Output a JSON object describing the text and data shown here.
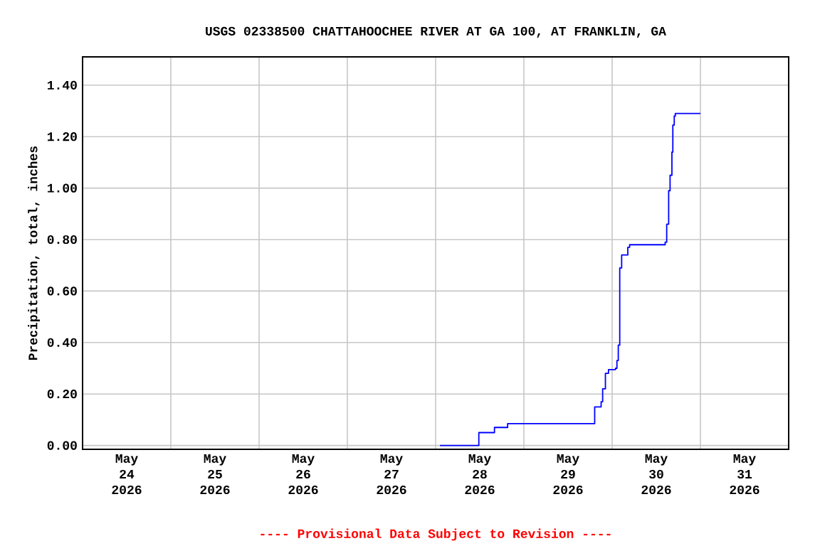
{
  "chart_data": {
    "type": "step",
    "title": "USGS 02338500 CHATTAHOOCHEE RIVER AT GA 100, AT FRANKLIN, GA",
    "ylabel": "Precipitation, total, inches",
    "annotations": [
      "---- Provisional Data Subject to Revision ----"
    ],
    "x": [
      "2026-05-28T01:10",
      "2026-05-28T11:45",
      "2026-05-28T16:00",
      "2026-05-28T19:35",
      "2026-05-29T19:15",
      "2026-05-29T21:00",
      "2026-05-29T21:25",
      "2026-05-29T22:10",
      "2026-05-29T23:00",
      "2026-05-30T00:55",
      "2026-05-30T01:18",
      "2026-05-30T01:40",
      "2026-05-30T02:04",
      "2026-05-30T02:35",
      "2026-05-30T04:15",
      "2026-05-30T04:45",
      "2026-05-30T14:25",
      "2026-05-30T14:50",
      "2026-05-30T15:22",
      "2026-05-30T15:45",
      "2026-05-30T16:15",
      "2026-05-30T16:30",
      "2026-05-30T16:53",
      "2026-05-30T17:10",
      "2026-05-31T00:00"
    ],
    "series": [
      {
        "color": "#0000ff",
        "values": [
          0,
          0.05,
          0.07,
          0.085,
          0.15,
          0.17,
          0.22,
          0.28,
          0.295,
          0.3,
          0.33,
          0.39,
          0.69,
          0.74,
          0.77,
          0.78,
          0.79,
          0.86,
          0.99,
          1.05,
          1.14,
          1.245,
          1.28,
          1.29,
          1.29
        ]
      }
    ],
    "xlim": [
      "2026-05-24T00:00",
      "2026-06-01T00:00"
    ],
    "xticks": [
      {
        "value": "2026-05-24T12:00",
        "label": "May 24 2026"
      },
      {
        "value": "2026-05-25T12:00",
        "label": "May 25 2026"
      },
      {
        "value": "2026-05-26T12:00",
        "label": "May 26 2026"
      },
      {
        "value": "2026-05-27T12:00",
        "label": "May 27 2026"
      },
      {
        "value": "2026-05-28T12:00",
        "label": "May 28 2026"
      },
      {
        "value": "2026-05-29T12:00",
        "label": "May 29 2026"
      },
      {
        "value": "2026-05-30T12:00",
        "label": "May 30 2026"
      },
      {
        "value": "2026-05-31T12:00",
        "label": "May 31 2026"
      },
      {
        "value": "2026-05-25T00:00",
        "label": null
      },
      {
        "value": "2026-05-26T00:00",
        "label": null
      },
      {
        "value": "2026-05-27T00:00",
        "label": null
      },
      {
        "value": "2026-05-28T00:00",
        "label": null
      },
      {
        "value": "2026-05-29T00:00",
        "label": null
      },
      {
        "value": "2026-05-30T00:00",
        "label": null
      },
      {
        "value": "2026-05-31T00:00",
        "label": null
      }
    ],
    "ylim": [
      -0.015,
      1.51
    ],
    "yticks": [
      {
        "value": 0,
        "label": "0.00"
      },
      {
        "value": 0.2,
        "label": "0.20"
      },
      {
        "value": 0.4,
        "label": "0.40"
      },
      {
        "value": 0.6,
        "label": "0.60"
      },
      {
        "value": 0.8,
        "label": "0.80"
      },
      {
        "value": 1.0,
        "label": "1.00"
      },
      {
        "value": 1.2,
        "label": "1.20"
      },
      {
        "value": 1.4,
        "label": "1.40"
      }
    ],
    "grid": true,
    "marker": "none",
    "line_style": "solid"
  }
}
